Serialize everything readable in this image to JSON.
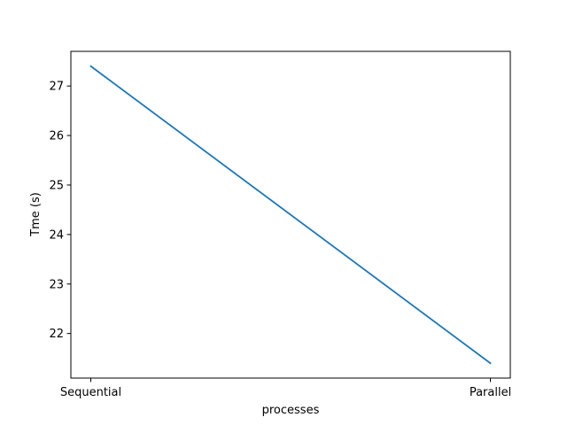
{
  "chart_data": {
    "type": "line",
    "title": "",
    "xlabel": "processes",
    "ylabel": "Tme (s)",
    "categories": [
      "Sequential",
      "Parallel"
    ],
    "series": [
      {
        "values": [
          27.4,
          21.4
        ],
        "color": "#1f77b4"
      }
    ],
    "yticks": [
      22,
      23,
      24,
      25,
      26,
      27
    ],
    "ylim": [
      21.1,
      27.7
    ],
    "grid": false,
    "legend": "none"
  }
}
